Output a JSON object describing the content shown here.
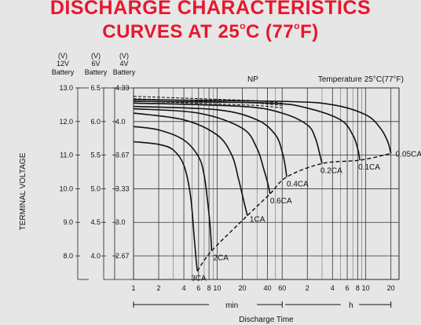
{
  "title_line1": "DISCHARGE CHARACTERISTICS",
  "title_line2_pre": "CURVES AT 25",
  "title_line2_deg1": "o",
  "title_line2_mid": "C (77",
  "title_line2_deg2": "o",
  "title_line2_post": "F)",
  "chart_data": {
    "type": "line",
    "title": "DISCHARGE CHARACTERISTICS CURVES AT 25°C (77°F)",
    "model_label": "NP",
    "temperature_label": "Temperature 25°C(77°F)",
    "ylabel": "TERMINAL VOLTAGE",
    "xlabel": "Discharge Time",
    "x_unit_min": "min",
    "x_unit_h": "h",
    "y_axes": [
      {
        "unit": "(V)",
        "name": "12V",
        "sub": "Battery",
        "ticks": [
          "13.0",
          "12.0",
          "11.0",
          "10.0",
          "9.0",
          "8.0"
        ]
      },
      {
        "unit": "(V)",
        "name": "6V",
        "sub": "Battery",
        "ticks": [
          "6.5",
          "6.0",
          "5.5",
          "5.0",
          "4.5",
          "4.0"
        ]
      },
      {
        "unit": "(V)",
        "name": "4V",
        "sub": "Battery",
        "ticks": [
          "4.33",
          "4.0",
          "3.67",
          "3.33",
          "3.0",
          "2.67"
        ]
      }
    ],
    "ylim": [
      7.3,
      13.0
    ],
    "x_ticks": [
      {
        "label": "1",
        "min": 1
      },
      {
        "label": "2",
        "min": 2
      },
      {
        "label": "4",
        "min": 4
      },
      {
        "label": "6",
        "min": 6
      },
      {
        "label": "8",
        "min": 8
      },
      {
        "label": "10",
        "min": 10
      },
      {
        "label": "20",
        "min": 20
      },
      {
        "label": "40",
        "min": 40
      },
      {
        "label": "60",
        "min": 60
      },
      {
        "label": "2",
        "min": 120
      },
      {
        "label": "4",
        "min": 240
      },
      {
        "label": "6",
        "min": 360
      },
      {
        "label": "8",
        "min": 480
      },
      {
        "label": "10",
        "min": 600
      },
      {
        "label": "20",
        "min": 1200
      }
    ],
    "x_minor_min": [
      3,
      5,
      7,
      9,
      30,
      50,
      180,
      300,
      420,
      540
    ],
    "series": [
      {
        "name": "3CA",
        "points": [
          [
            1,
            11.4
          ],
          [
            2,
            11.32
          ],
          [
            3,
            11.15
          ],
          [
            4,
            10.7
          ],
          [
            4.8,
            9.8
          ],
          [
            5.3,
            8.6
          ],
          [
            5.6,
            7.9
          ],
          [
            5.8,
            7.55
          ]
        ]
      },
      {
        "name": "2CA",
        "points": [
          [
            1,
            11.85
          ],
          [
            2,
            11.75
          ],
          [
            4,
            11.45
          ],
          [
            6,
            10.95
          ],
          [
            7,
            10.4
          ],
          [
            7.8,
            9.5
          ],
          [
            8.3,
            8.8
          ],
          [
            8.6,
            8.15
          ]
        ]
      },
      {
        "name": "1CA",
        "points": [
          [
            1,
            12.25
          ],
          [
            4,
            12.05
          ],
          [
            10,
            11.6
          ],
          [
            15,
            11.0
          ],
          [
            18,
            10.3
          ],
          [
            21,
            9.6
          ],
          [
            23,
            9.2
          ]
        ]
      },
      {
        "name": "0.6CA",
        "points": [
          [
            1,
            12.38
          ],
          [
            6,
            12.25
          ],
          [
            20,
            11.8
          ],
          [
            30,
            11.2
          ],
          [
            36,
            10.6
          ],
          [
            40,
            10.2
          ],
          [
            43,
            9.85
          ]
        ]
      },
      {
        "name": "0.4CA",
        "points": [
          [
            1,
            12.45
          ],
          [
            10,
            12.35
          ],
          [
            30,
            12.05
          ],
          [
            50,
            11.6
          ],
          [
            60,
            11.1
          ],
          [
            65,
            10.7
          ],
          [
            68,
            10.35
          ]
        ]
      },
      {
        "name": "0.2CA",
        "points": [
          [
            1,
            12.55
          ],
          [
            20,
            12.45
          ],
          [
            60,
            12.25
          ],
          [
            120,
            11.9
          ],
          [
            150,
            11.5
          ],
          [
            170,
            11.0
          ],
          [
            180,
            10.75
          ]
        ]
      },
      {
        "name": "0.1CA",
        "points": [
          [
            1,
            12.6
          ],
          [
            40,
            12.55
          ],
          [
            120,
            12.4
          ],
          [
            300,
            12.05
          ],
          [
            420,
            11.6
          ],
          [
            480,
            11.2
          ],
          [
            510,
            10.85
          ]
        ]
      },
      {
        "name": "0.05CA",
        "points": [
          [
            1,
            12.65
          ],
          [
            60,
            12.6
          ],
          [
            240,
            12.5
          ],
          [
            600,
            12.2
          ],
          [
            900,
            11.8
          ],
          [
            1100,
            11.4
          ],
          [
            1200,
            11.05
          ]
        ]
      }
    ],
    "series_label_text": [
      "3CA",
      "2CA",
      "1CA",
      "0.6CA",
      "0.4CA",
      "0.2CA",
      "0.1CA",
      "0.05CA"
    ],
    "final_voltage_line": [
      [
        5.8,
        7.55
      ],
      [
        8.6,
        8.15
      ],
      [
        23,
        9.2
      ],
      [
        43,
        9.85
      ],
      [
        68,
        10.35
      ],
      [
        180,
        10.75
      ],
      [
        510,
        10.85
      ],
      [
        1200,
        11.05
      ]
    ],
    "dashed_region_top": [
      [
        1,
        12.75
      ],
      [
        30,
        12.62
      ],
      [
        60,
        12.55
      ]
    ],
    "grid": true
  }
}
